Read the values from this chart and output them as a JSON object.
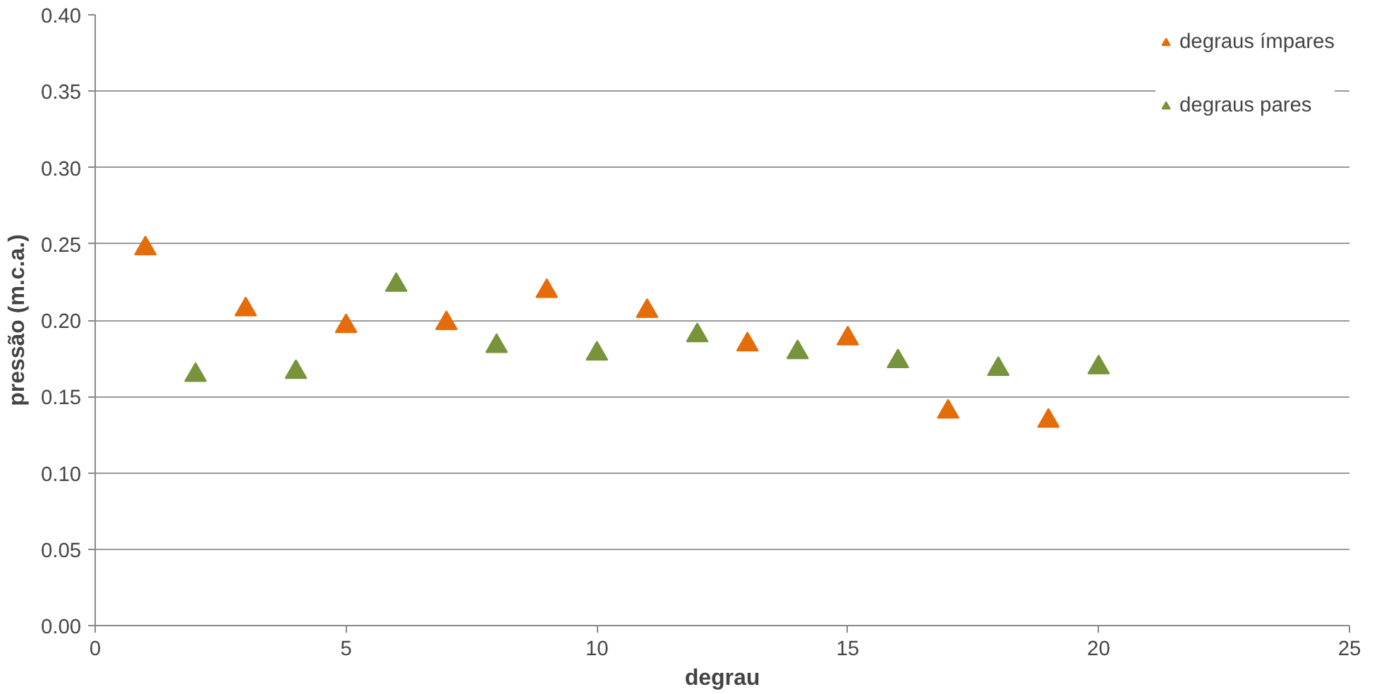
{
  "chart_data": {
    "type": "scatter",
    "xlabel": "degrau",
    "ylabel": "pressão (m.c.a.)",
    "xlim": [
      0,
      25
    ],
    "xticks": [
      0,
      5,
      10,
      15,
      20,
      25
    ],
    "ylim": [
      0,
      0.4
    ],
    "yticks": [
      {
        "value": 0,
        "label": "0.00"
      },
      {
        "value": 0.05,
        "label": "0.05"
      },
      {
        "value": 0.1,
        "label": "0.10"
      },
      {
        "value": 0.15,
        "label": "0.15"
      },
      {
        "value": 0.2,
        "label": "0.20"
      },
      {
        "value": 0.25,
        "label": "0.25"
      },
      {
        "value": 0.3,
        "label": "0.30"
      },
      {
        "value": 0.35,
        "label": "0.35"
      },
      {
        "value": 0.4,
        "label": "0.40"
      }
    ],
    "grid": "y",
    "legend": "top right",
    "marker": "triangle",
    "series": [
      {
        "name": "degraus ímpares",
        "color": "#e46c0a",
        "x": [
          1,
          3,
          5,
          7,
          9,
          11,
          13,
          15,
          17,
          19
        ],
        "values": [
          0.247,
          0.207,
          0.196,
          0.198,
          0.219,
          0.206,
          0.184,
          0.188,
          0.14,
          0.134
        ]
      },
      {
        "name": "degraus pares",
        "color": "#77933c",
        "x": [
          2,
          4,
          6,
          8,
          10,
          12,
          14,
          16,
          18,
          20
        ],
        "values": [
          0.164,
          0.166,
          0.223,
          0.183,
          0.178,
          0.19,
          0.179,
          0.173,
          0.168,
          0.169
        ]
      }
    ]
  }
}
